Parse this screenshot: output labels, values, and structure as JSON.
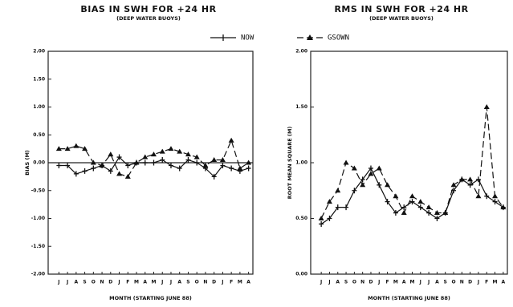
{
  "chart_data": [
    {
      "type": "line",
      "title": "BIAS IN SWH FOR +24 HR",
      "subtitle": "(DEEP WATER BUOYS)",
      "x_label": "MONTH (STARTING JUNE 88)",
      "y_label": "BIAS (M)",
      "categories": [
        "J",
        "J",
        "A",
        "S",
        "O",
        "N",
        "D",
        "J",
        "F",
        "M",
        "A",
        "M",
        "J",
        "J",
        "A",
        "S",
        "O",
        "N",
        "D",
        "J",
        "F",
        "M",
        "A"
      ],
      "ylim": [
        -2,
        2
      ],
      "yticks": [
        {
          "value": -2,
          "label": "-2.00"
        },
        {
          "value": -1.5,
          "label": "-1.50"
        },
        {
          "value": -1,
          "label": "-1.00"
        },
        {
          "value": -0.5,
          "label": "-0.50"
        },
        {
          "value": 0,
          "label": "0.00"
        },
        {
          "value": 0.5,
          "label": "0.50"
        },
        {
          "value": 1,
          "label": "1.00"
        },
        {
          "value": 1.5,
          "label": "1.50"
        },
        {
          "value": 2,
          "label": "2.00"
        }
      ],
      "hline": 0,
      "series": [
        {
          "name": "NOW",
          "color": "#111",
          "marker": "plus",
          "dash": false,
          "values": [
            -0.05,
            -0.05,
            -0.2,
            -0.15,
            -0.1,
            -0.05,
            -0.15,
            0.1,
            -0.05,
            0.0,
            0.0,
            0.0,
            0.05,
            -0.05,
            -0.1,
            0.05,
            0.0,
            -0.1,
            -0.25,
            -0.05,
            -0.1,
            -0.15,
            -0.1
          ]
        },
        {
          "name": "GSOWN",
          "color": "#111",
          "marker": "triangle",
          "dash": true,
          "values": [
            0.25,
            0.25,
            0.3,
            0.25,
            0.0,
            -0.05,
            0.15,
            -0.2,
            -0.25,
            0.0,
            0.1,
            0.15,
            0.2,
            0.25,
            0.2,
            0.15,
            0.1,
            -0.05,
            0.05,
            0.05,
            0.4,
            -0.1,
            0.0
          ]
        }
      ]
    },
    {
      "type": "line",
      "title": "RMS IN SWH FOR +24 HR",
      "subtitle": "(DEEP WATER BUOYS)",
      "x_label": "MONTH (STARTING JUNE 88)",
      "y_label": "ROOT MEAN SQUARE (M)",
      "categories": [
        "J",
        "J",
        "A",
        "S",
        "O",
        "N",
        "D",
        "J",
        "F",
        "M",
        "A",
        "M",
        "J",
        "J",
        "A",
        "S",
        "O",
        "N",
        "D",
        "J",
        "F",
        "M",
        "A"
      ],
      "ylim": [
        0,
        2
      ],
      "yticks": [
        {
          "value": 0,
          "label": "0.00"
        },
        {
          "value": 0.5,
          "label": "0.50"
        },
        {
          "value": 1,
          "label": "1.00"
        },
        {
          "value": 1.5,
          "label": "1.50"
        },
        {
          "value": 2,
          "label": "2.00"
        }
      ],
      "series": [
        {
          "name": "NOW",
          "color": "#111",
          "marker": "plus",
          "dash": false,
          "values": [
            0.45,
            0.5,
            0.6,
            0.6,
            0.75,
            0.85,
            0.95,
            0.8,
            0.65,
            0.55,
            0.6,
            0.65,
            0.6,
            0.55,
            0.5,
            0.55,
            0.75,
            0.85,
            0.8,
            0.85,
            0.7,
            0.65,
            0.6
          ]
        },
        {
          "name": "GSOWN",
          "color": "#111",
          "marker": "triangle",
          "dash": true,
          "values": [
            0.5,
            0.65,
            0.75,
            1.0,
            0.95,
            0.8,
            0.9,
            0.95,
            0.8,
            0.7,
            0.55,
            0.7,
            0.65,
            0.6,
            0.55,
            0.55,
            0.8,
            0.85,
            0.85,
            0.7,
            1.5,
            0.7,
            0.6
          ]
        }
      ]
    }
  ]
}
